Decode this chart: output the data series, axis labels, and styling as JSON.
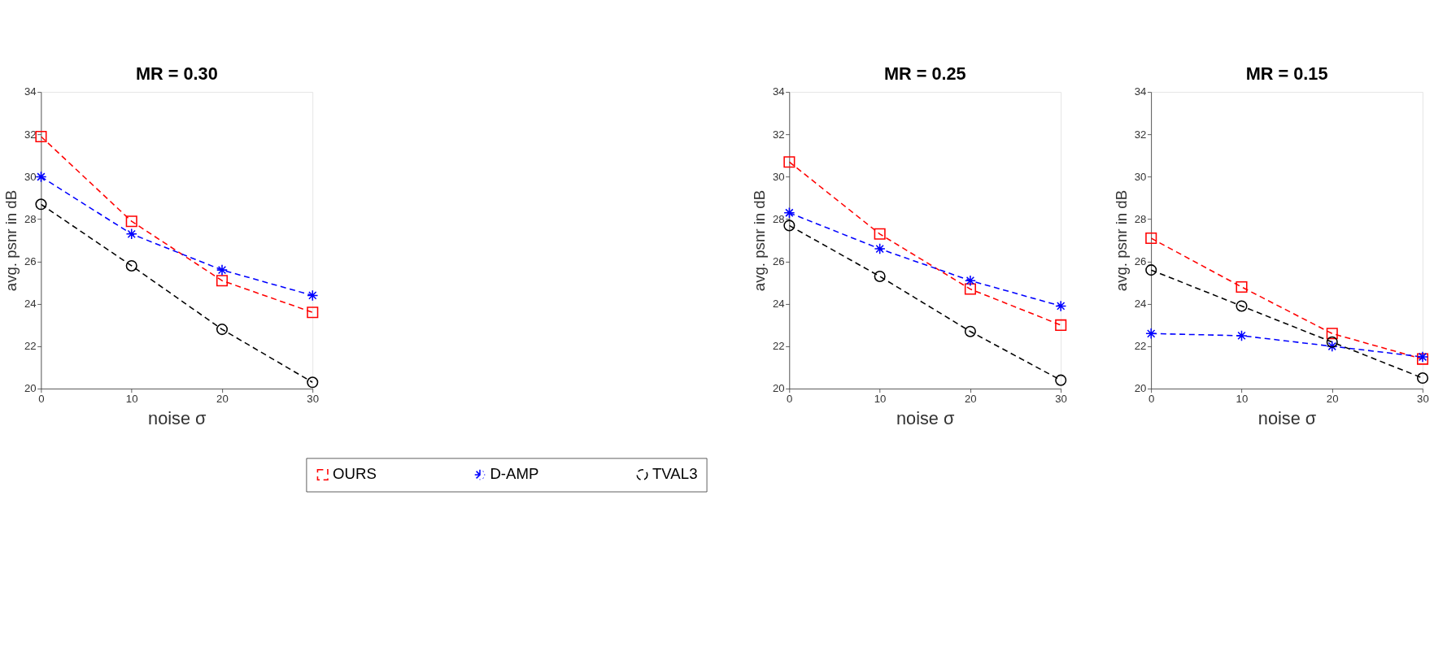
{
  "chart_data": [
    {
      "type": "line",
      "title": "MR = 0.30",
      "xlabel": "noise  σ",
      "ylabel": "avg. psnr in dB",
      "x": [
        0,
        10,
        20,
        30
      ],
      "xlim": [
        0,
        30
      ],
      "xticks": [
        0,
        10,
        20,
        30
      ],
      "ylim": [
        20,
        34
      ],
      "yticks": [
        20,
        22,
        24,
        26,
        28,
        30,
        32,
        34
      ],
      "grid": false,
      "legend": "bottom",
      "line_style": "dashed",
      "series": [
        {
          "name": "OURS",
          "color": "#ff0000",
          "marker": "square",
          "values": [
            31.9,
            27.9,
            25.1,
            23.6
          ]
        },
        {
          "name": "D-AMP",
          "color": "#0000ff",
          "marker": "cross",
          "values": [
            30.0,
            27.3,
            25.6,
            24.4
          ]
        },
        {
          "name": "TVAL3",
          "color": "#000000",
          "marker": "circle",
          "values": [
            28.7,
            25.8,
            22.8,
            20.3
          ]
        }
      ]
    },
    {
      "type": "line",
      "title": "MR = 0.25",
      "xlabel": "noise  σ",
      "ylabel": "avg. psnr in dB",
      "x": [
        0,
        10,
        20,
        30
      ],
      "xlim": [
        0,
        30
      ],
      "xticks": [
        0,
        10,
        20,
        30
      ],
      "ylim": [
        20,
        34
      ],
      "yticks": [
        20,
        22,
        24,
        26,
        28,
        30,
        32,
        34
      ],
      "grid": false,
      "line_style": "dashed",
      "series": [
        {
          "color": "#ff0000",
          "marker": "square",
          "values": [
            30.7,
            27.3,
            24.7,
            23.0
          ]
        },
        {
          "color": "#0000ff",
          "marker": "cross",
          "values": [
            28.3,
            26.6,
            25.1,
            23.9
          ]
        },
        {
          "color": "#000000",
          "marker": "circle",
          "values": [
            27.7,
            25.3,
            22.7,
            20.4
          ]
        }
      ]
    },
    {
      "type": "line",
      "title": "MR = 0.15",
      "xlabel": "noise  σ",
      "ylabel": "avg. psnr in dB",
      "x": [
        0,
        10,
        20,
        30
      ],
      "xlim": [
        0,
        30
      ],
      "xticks": [
        0,
        10,
        20,
        30
      ],
      "ylim": [
        20,
        34
      ],
      "yticks": [
        20,
        22,
        24,
        26,
        28,
        30,
        32,
        34
      ],
      "grid": false,
      "line_style": "dashed",
      "series": [
        {
          "color": "#ff0000",
          "marker": "square",
          "values": [
            27.1,
            24.8,
            22.6,
            21.4
          ]
        },
        {
          "color": "#0000ff",
          "marker": "cross",
          "values": [
            22.6,
            22.5,
            22.0,
            21.5
          ]
        },
        {
          "color": "#000000",
          "marker": "circle",
          "values": [
            25.6,
            23.9,
            22.2,
            20.5
          ]
        }
      ]
    }
  ]
}
